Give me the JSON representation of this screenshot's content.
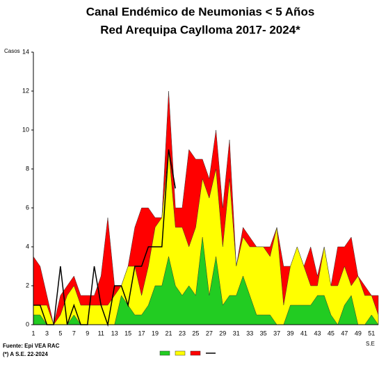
{
  "chart_data": {
    "type": "stacked-area-line",
    "title": "Canal Endémico de Neumonias < 5 Años",
    "subtitle": "Red Arequipa Caylloma 2017- 2024*",
    "y_label": "Casos",
    "x_label": "S.E",
    "source": "Fuente: Epi VEA RAC",
    "footnote": "(*) A S.E. 22-2024",
    "categories": [
      "1",
      null,
      "3",
      null,
      "5",
      null,
      "7",
      null,
      "9",
      null,
      "11",
      null,
      "13",
      null,
      "15",
      null,
      "17",
      null,
      "19",
      null,
      "21",
      null,
      "23",
      null,
      "25",
      null,
      "27",
      null,
      "29",
      null,
      "31",
      null,
      "33",
      null,
      "35",
      null,
      "37",
      null,
      "39",
      null,
      "41",
      null,
      "43",
      null,
      "45",
      null,
      "47",
      null,
      "49",
      null,
      "51",
      null
    ],
    "ylim": [
      0,
      14
    ],
    "yticks": [
      0,
      2,
      4,
      6,
      8,
      10,
      12,
      14
    ],
    "grid": false,
    "series": [
      {
        "color": "#22cc22",
        "kind": "area",
        "values": [
          0.5,
          0.5,
          0,
          0,
          0,
          0,
          0.5,
          0,
          0,
          0,
          0,
          0,
          0,
          1.5,
          1,
          0.5,
          0.5,
          1,
          2,
          2,
          3.5,
          2,
          1.5,
          2,
          1.5,
          4.5,
          1.5,
          3.5,
          1,
          1.5,
          1.5,
          2.5,
          1.5,
          0.5,
          0.5,
          0.5,
          0,
          0,
          1,
          1,
          1,
          1,
          1.5,
          1.5,
          0.5,
          0,
          1,
          1.5,
          0,
          0,
          0.5,
          0
        ]
      },
      {
        "color": "#ffff00",
        "kind": "area",
        "values": [
          0.5,
          0.5,
          1,
          0,
          0.5,
          1.5,
          1.5,
          1,
          1,
          1,
          1,
          1,
          1.5,
          0.5,
          2,
          2.5,
          1,
          2,
          3,
          3.5,
          5.5,
          3,
          3.5,
          2,
          3.5,
          3,
          5,
          4.5,
          3,
          6,
          1.5,
          2,
          2.5,
          3.5,
          3.5,
          3,
          5,
          1,
          2,
          3,
          2,
          1,
          0.5,
          2.5,
          1.5,
          2,
          2,
          0.5,
          2.5,
          1.5,
          1,
          0.5
        ]
      },
      {
        "color": "#ff0000",
        "kind": "area",
        "values": [
          2.5,
          2,
          0.5,
          0,
          1,
          0.5,
          0.5,
          0.5,
          0.5,
          0.5,
          1.5,
          4.5,
          0.5,
          0,
          0,
          2,
          4.5,
          3,
          0.5,
          0,
          3,
          1,
          1,
          5,
          3.5,
          1,
          1,
          2,
          2,
          2,
          0,
          0.5,
          0.5,
          0,
          0,
          0.5,
          0,
          2,
          0,
          0,
          0,
          2,
          0.5,
          0,
          0,
          2,
          1,
          2.5,
          0,
          0.5,
          0,
          1
        ]
      },
      {
        "color": "#000000",
        "kind": "line",
        "values": [
          1,
          1,
          0,
          0,
          3,
          0,
          1,
          0,
          0,
          3,
          1,
          0,
          2,
          2,
          1,
          3,
          3,
          4,
          4,
          4,
          9,
          7,
          null,
          null,
          null,
          null,
          null,
          null,
          null,
          null,
          null,
          null,
          null,
          null,
          null,
          null,
          null,
          null,
          null,
          null,
          null,
          null,
          null,
          null,
          null,
          null,
          null,
          null,
          null,
          null,
          null,
          null
        ]
      }
    ]
  }
}
